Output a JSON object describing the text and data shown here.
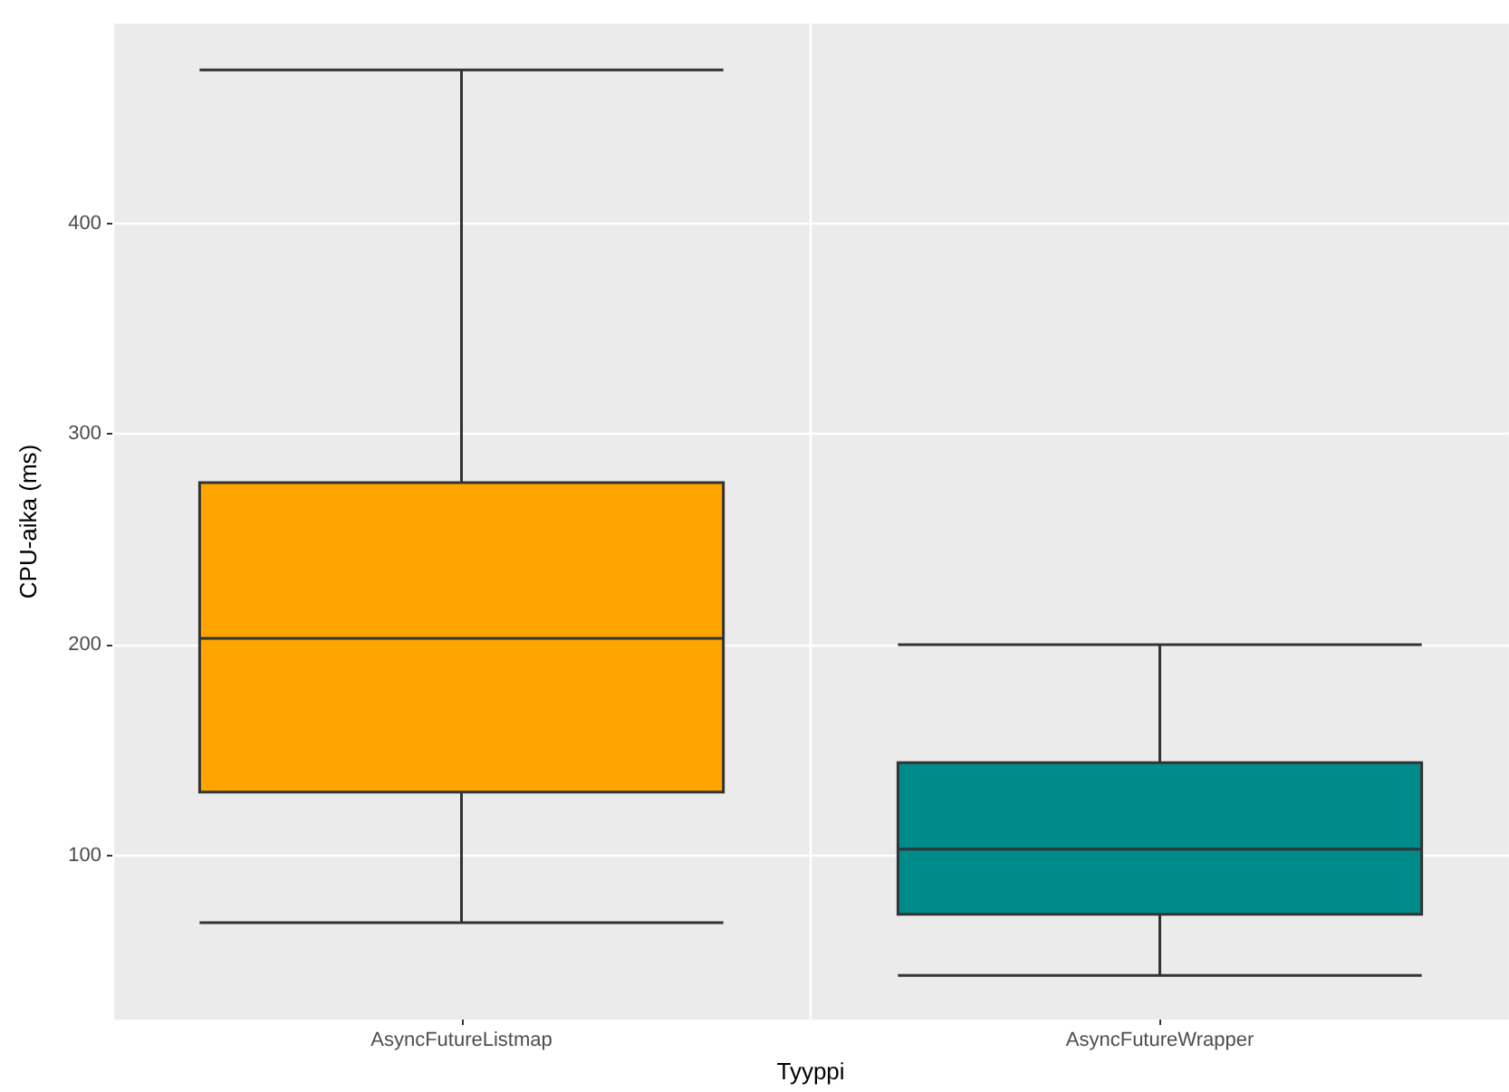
{
  "chart_data": {
    "type": "box",
    "xlabel": "Tyyppi",
    "ylabel": "CPU-aika (ms)",
    "categories": [
      "AsyncFutureListmap",
      "AsyncFutureWrapper"
    ],
    "boxes": [
      {
        "low": 68,
        "q1": 130,
        "median": 203,
        "q3": 277,
        "high": 473
      },
      {
        "low": 43,
        "q1": 72,
        "median": 103,
        "q3": 144,
        "high": 200
      }
    ],
    "colors": [
      "#ffa500",
      "#008b8b"
    ],
    "ylim": [
      22,
      495
    ],
    "yticks": [
      100,
      200,
      300,
      400
    ],
    "grid": true
  }
}
